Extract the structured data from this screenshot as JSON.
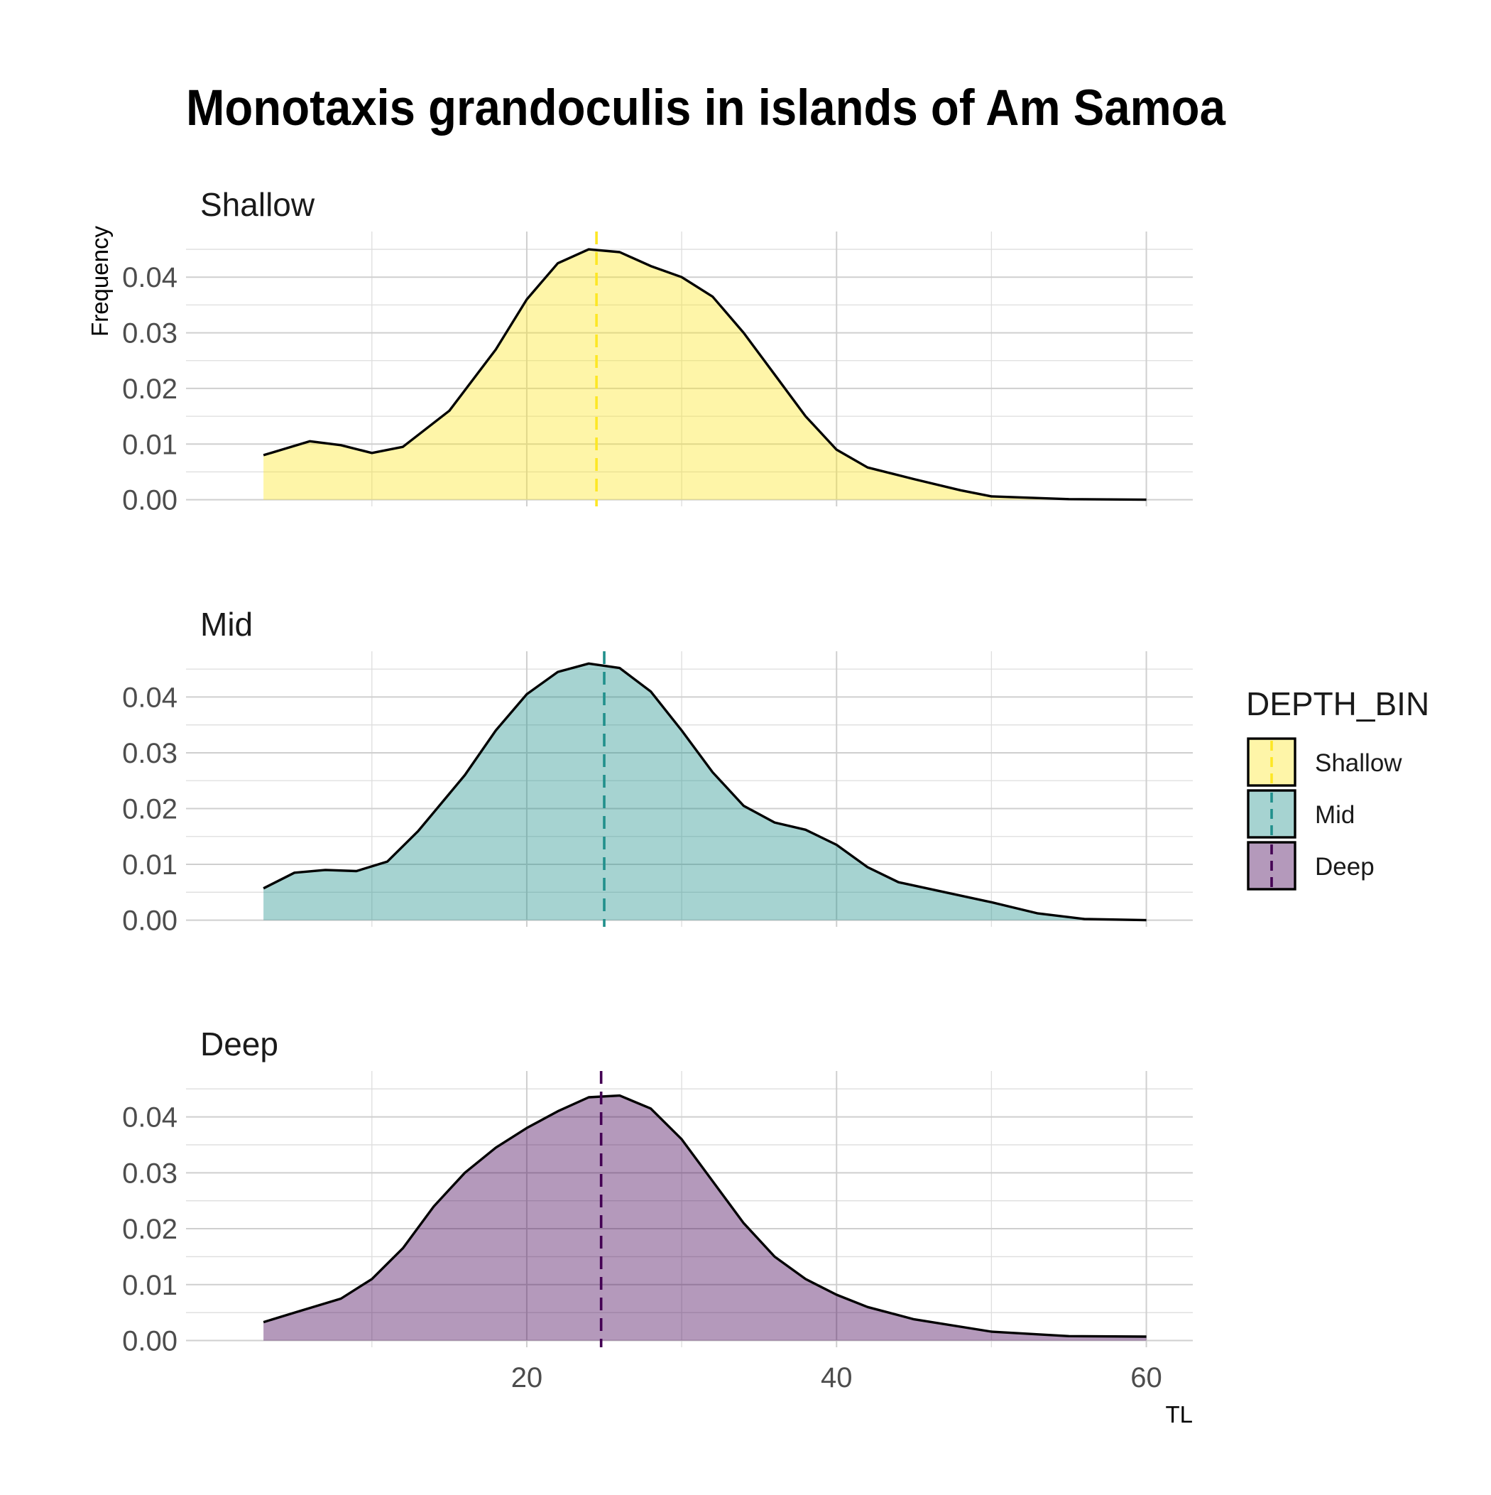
{
  "chart_data": {
    "type": "area",
    "title": "Monotaxis grandoculis in islands of Am Samoa",
    "xlabel": "TL",
    "ylabel": "Frequency",
    "xlim": [
      -2,
      63
    ],
    "ylim": [
      -0.0012,
      0.0482
    ],
    "x_ticks": [
      20,
      40,
      60
    ],
    "x_tick_labels": [
      "20",
      "40",
      "60"
    ],
    "x_minor_gridlines": [
      10,
      30,
      50
    ],
    "y_ticks": [
      0,
      0.01,
      0.02,
      0.03,
      0.04
    ],
    "y_tick_labels": [
      "0.00",
      "0.01",
      "0.02",
      "0.03",
      "0.04"
    ],
    "y_minor_gridlines": [
      0.005,
      0.015,
      0.025,
      0.035,
      0.045
    ],
    "grid": true,
    "legend": {
      "title": "DEPTH_BIN",
      "placement": "right",
      "entries": [
        "Shallow",
        "Mid",
        "Deep"
      ]
    },
    "series": [
      {
        "name": "Shallow",
        "color": "#FDE725",
        "mean_line": 24.5,
        "points": [
          [
            3,
            0.008
          ],
          [
            6,
            0.0105
          ],
          [
            8,
            0.0098
          ],
          [
            10,
            0.0084
          ],
          [
            12,
            0.0095
          ],
          [
            15,
            0.016
          ],
          [
            18,
            0.027
          ],
          [
            20,
            0.036
          ],
          [
            22,
            0.0425
          ],
          [
            24,
            0.045
          ],
          [
            26,
            0.0445
          ],
          [
            28,
            0.042
          ],
          [
            30,
            0.04
          ],
          [
            32,
            0.0365
          ],
          [
            34,
            0.03
          ],
          [
            36,
            0.0225
          ],
          [
            38,
            0.015
          ],
          [
            40,
            0.009
          ],
          [
            42,
            0.0058
          ],
          [
            45,
            0.0037
          ],
          [
            48,
            0.0017
          ],
          [
            50,
            0.0006
          ],
          [
            55,
            0.0001
          ],
          [
            60,
            0.0
          ]
        ]
      },
      {
        "name": "Mid",
        "color": "#21908C",
        "mean_line": 25,
        "points": [
          [
            3,
            0.0057
          ],
          [
            5,
            0.0085
          ],
          [
            7,
            0.009
          ],
          [
            9,
            0.0088
          ],
          [
            11,
            0.0105
          ],
          [
            13,
            0.016
          ],
          [
            16,
            0.026
          ],
          [
            18,
            0.034
          ],
          [
            20,
            0.0405
          ],
          [
            22,
            0.0445
          ],
          [
            24,
            0.046
          ],
          [
            26,
            0.0452
          ],
          [
            28,
            0.041
          ],
          [
            30,
            0.034
          ],
          [
            32,
            0.0265
          ],
          [
            34,
            0.0205
          ],
          [
            36,
            0.0175
          ],
          [
            38,
            0.0162
          ],
          [
            40,
            0.0135
          ],
          [
            42,
            0.0095
          ],
          [
            44,
            0.0068
          ],
          [
            47,
            0.005
          ],
          [
            50,
            0.0032
          ],
          [
            53,
            0.0012
          ],
          [
            56,
            0.0002
          ],
          [
            60,
            0.0
          ]
        ]
      },
      {
        "name": "Deep",
        "color": "#440154",
        "mean_line": 24.8,
        "points": [
          [
            3,
            0.0033
          ],
          [
            5,
            0.005
          ],
          [
            8,
            0.0075
          ],
          [
            10,
            0.011
          ],
          [
            12,
            0.0165
          ],
          [
            14,
            0.024
          ],
          [
            16,
            0.03
          ],
          [
            18,
            0.0345
          ],
          [
            20,
            0.038
          ],
          [
            22,
            0.041
          ],
          [
            24,
            0.0435
          ],
          [
            26,
            0.0438
          ],
          [
            28,
            0.0415
          ],
          [
            30,
            0.036
          ],
          [
            32,
            0.0285
          ],
          [
            34,
            0.021
          ],
          [
            36,
            0.015
          ],
          [
            38,
            0.011
          ],
          [
            40,
            0.0082
          ],
          [
            42,
            0.006
          ],
          [
            45,
            0.0038
          ],
          [
            50,
            0.0016
          ],
          [
            55,
            0.0008
          ],
          [
            60,
            0.0007
          ]
        ]
      }
    ]
  }
}
